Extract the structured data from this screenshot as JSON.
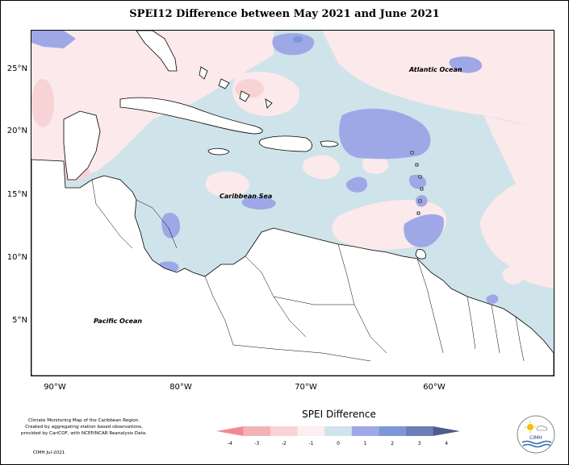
{
  "title": "SPEI12 Difference between May 2021 and June 2021",
  "axes": {
    "y_labels": [
      "25°N",
      "20°N",
      "15°N",
      "10°N",
      "5°N"
    ],
    "x_labels": [
      "90°W",
      "80°W",
      "70°W",
      "60°W"
    ]
  },
  "map_labels": {
    "atlantic": "Atlantic Ocean",
    "caribbean": "Caribbean Sea",
    "pacific": "Pacific Ocean"
  },
  "legend": {
    "title": "SPEI Difference",
    "ticks": [
      "-4",
      "-3",
      "-2",
      "-1",
      "0",
      "1",
      "2",
      "3",
      "4"
    ],
    "colors": [
      "#f08a8f",
      "#f3b3b6",
      "#f8d3d6",
      "#fdeeef",
      "#cfe3ea",
      "#9fa8e6",
      "#7d96d8",
      "#6b7fb5",
      "#4f5a8f"
    ]
  },
  "credits": {
    "lines": [
      "Climate Monitoring Map of the Caribbean Region.",
      "Created by aggregating station based observations,",
      "provided by CariCOF, with NCEP/NCAR Reanalysis Data."
    ],
    "footer": "CIMH  Jul-2021"
  },
  "logo_text": "CIMH"
}
